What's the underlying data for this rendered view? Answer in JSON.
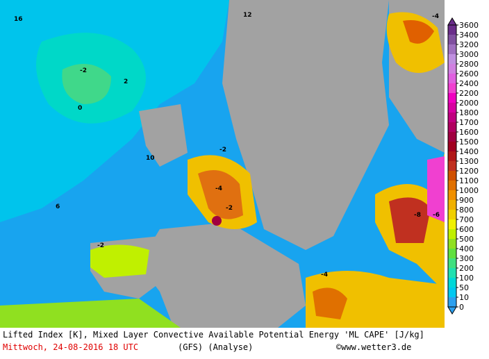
{
  "map": {
    "labels": [
      "-2",
      "-2",
      "-4",
      "-2",
      "-8",
      "-6",
      "-4",
      "-4",
      "-2",
      "16",
      "2",
      "12",
      "10",
      "6",
      "0"
    ]
  },
  "footer": {
    "title": "Lifted Index [K], Mixed Layer Convective Available Potential Energy 'ML CAPE' [J/kg]",
    "date": "Mittwoch, 24-08-2016  18 UTC",
    "model": "(GFS)  (Analyse)",
    "source": "©www.wetter3.de"
  },
  "colorbar": {
    "ticks": [
      3600,
      3400,
      3200,
      3000,
      2800,
      2600,
      2400,
      2200,
      2000,
      1800,
      1700,
      1600,
      1500,
      1400,
      1300,
      1200,
      1100,
      1000,
      900,
      800,
      700,
      600,
      500,
      400,
      300,
      200,
      100,
      50,
      10,
      0
    ],
    "colors": [
      "#6a2d8a",
      "#8050a0",
      "#a070c0",
      "#c090e0",
      "#d080e0",
      "#e060e0",
      "#f040d0",
      "#f000c0",
      "#d800a0",
      "#c00080",
      "#b00060",
      "#a00040",
      "#a00020",
      "#b01818",
      "#c03020",
      "#d05000",
      "#e07000",
      "#f09000",
      "#f0b000",
      "#f0d000",
      "#f0f000",
      "#c0f000",
      "#90e020",
      "#60e040",
      "#40e080",
      "#20e0b0",
      "#00d8d8",
      "#00c8f0",
      "#2ba0f0"
    ]
  }
}
